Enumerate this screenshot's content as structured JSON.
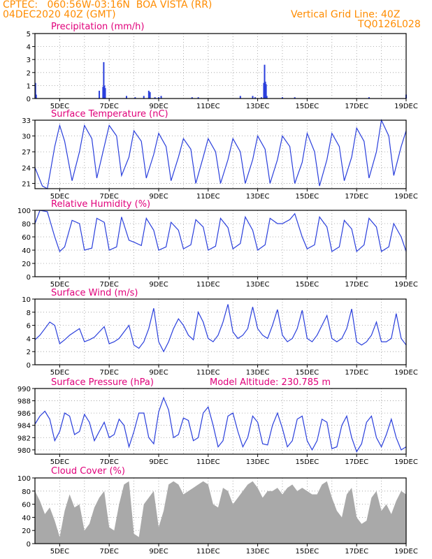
{
  "header": {
    "station_line": "CPTEC:   060:56W-03:16N  BOA VISTA (RR)",
    "date_line": "04DEC2020 40Z (GMT)",
    "grid_note": "Vertical Grid Line: 40Z",
    "code": "TQ0126L028"
  },
  "x_axis": {
    "start_day": 4,
    "end_day": 19,
    "tick_labels": [
      "5DEC",
      "7DEC",
      "9DEC",
      "11DEC",
      "13DEC",
      "15DEC",
      "17DEC",
      "19DEC"
    ],
    "tick_days": [
      5,
      7,
      9,
      11,
      13,
      15,
      17,
      19
    ]
  },
  "colors": {
    "line": "#2a3fdc",
    "title": "#e0007a",
    "header": "#ff8c00",
    "cloud": "#a9a9a9"
  },
  "chart_data": [
    {
      "type": "bar",
      "title": "Precipitation (mm/h)",
      "ylim": [
        0,
        5
      ],
      "yticks": [
        0,
        1,
        2,
        3,
        4,
        5
      ],
      "x": [
        4.02,
        4.05,
        6.6,
        6.75,
        6.78,
        6.81,
        6.84,
        7.7,
        8.05,
        8.4,
        8.6,
        8.65,
        8.85,
        9.0,
        9.1,
        10.35,
        10.6,
        12.3,
        12.8,
        12.9,
        13.15,
        13.25,
        13.28,
        13.31,
        13.34,
        13.37,
        14.0,
        14.5,
        17.5,
        19.0
      ],
      "values": [
        1.2,
        0.3,
        0.6,
        0.9,
        2.8,
        1.0,
        0.8,
        0.2,
        0.1,
        0.2,
        0.6,
        0.5,
        0.1,
        0.1,
        0.2,
        0.1,
        0.1,
        0.2,
        0.2,
        0.1,
        0.1,
        1.2,
        2.6,
        1.3,
        1.1,
        0.2,
        0.1,
        0.1,
        0.1,
        0.3
      ]
    },
    {
      "type": "line",
      "title": "Surface Temperature (nC)",
      "ylim": [
        20,
        33
      ],
      "yticks": [
        21,
        24,
        27,
        30,
        33
      ],
      "x": [
        4.0,
        4.3,
        4.5,
        4.8,
        5.0,
        5.2,
        5.5,
        5.8,
        6.0,
        6.3,
        6.5,
        6.8,
        7.0,
        7.3,
        7.5,
        7.8,
        8.0,
        8.3,
        8.5,
        8.8,
        9.0,
        9.3,
        9.5,
        9.8,
        10.0,
        10.3,
        10.5,
        10.8,
        11.0,
        11.3,
        11.5,
        11.8,
        12.0,
        12.3,
        12.5,
        12.8,
        13.0,
        13.3,
        13.5,
        13.8,
        14.0,
        14.3,
        14.5,
        14.8,
        15.0,
        15.3,
        15.5,
        15.8,
        16.0,
        16.3,
        16.5,
        16.8,
        17.0,
        17.3,
        17.5,
        17.8,
        18.0,
        18.3,
        18.5,
        18.8,
        19.0
      ],
      "values": [
        24,
        20.5,
        20,
        28,
        32,
        29,
        21.5,
        27,
        32,
        29.5,
        22,
        28,
        32,
        30,
        22.5,
        26,
        31,
        29,
        22,
        26.5,
        30.5,
        28,
        21.5,
        26,
        29.5,
        27.5,
        21,
        26,
        29.5,
        27,
        21,
        25.5,
        29.5,
        27,
        21,
        25.5,
        30,
        27.5,
        21,
        25.5,
        30,
        28,
        21,
        25,
        30.5,
        27,
        20.5,
        25.5,
        30.5,
        28,
        21.5,
        26,
        31.5,
        29,
        22,
        27,
        33,
        30,
        22.5,
        28,
        31
      ]
    },
    {
      "type": "line",
      "title": "Relative Humidity (%)",
      "ylim": [
        0,
        100
      ],
      "yticks": [
        0,
        20,
        40,
        60,
        80,
        100
      ],
      "x": [
        4.0,
        4.2,
        4.5,
        4.8,
        5.0,
        5.2,
        5.5,
        5.8,
        6.0,
        6.3,
        6.5,
        6.8,
        7.0,
        7.3,
        7.5,
        7.8,
        8.0,
        8.3,
        8.5,
        8.8,
        9.0,
        9.3,
        9.5,
        9.8,
        10.0,
        10.3,
        10.5,
        10.8,
        11.0,
        11.3,
        11.5,
        11.8,
        12.0,
        12.3,
        12.5,
        12.8,
        13.0,
        13.3,
        13.5,
        13.8,
        14.0,
        14.3,
        14.5,
        14.8,
        15.0,
        15.3,
        15.5,
        15.8,
        16.0,
        16.3,
        16.5,
        16.8,
        17.0,
        17.3,
        17.5,
        17.8,
        18.0,
        18.3,
        18.5,
        18.8,
        19.0
      ],
      "values": [
        80,
        100,
        98,
        60,
        38,
        45,
        85,
        80,
        40,
        43,
        88,
        82,
        40,
        45,
        90,
        55,
        52,
        47,
        88,
        70,
        40,
        45,
        82,
        70,
        42,
        48,
        86,
        75,
        40,
        46,
        88,
        74,
        42,
        50,
        90,
        70,
        40,
        48,
        88,
        80,
        80,
        86,
        95,
        60,
        42,
        48,
        90,
        75,
        38,
        45,
        85,
        72,
        38,
        48,
        88,
        75,
        38,
        45,
        80,
        60,
        38
      ]
    },
    {
      "type": "line",
      "title": "Surface Wind (m/s)",
      "ylim": [
        0,
        10
      ],
      "yticks": [
        0,
        2,
        4,
        6,
        8,
        10
      ],
      "x": [
        4.0,
        4.2,
        4.4,
        4.6,
        4.8,
        5.0,
        5.2,
        5.4,
        5.6,
        5.8,
        6.0,
        6.2,
        6.4,
        6.6,
        6.8,
        7.0,
        7.2,
        7.4,
        7.6,
        7.8,
        8.0,
        8.2,
        8.4,
        8.6,
        8.8,
        9.0,
        9.2,
        9.4,
        9.6,
        9.8,
        10.0,
        10.2,
        10.4,
        10.6,
        10.8,
        11.0,
        11.2,
        11.4,
        11.6,
        11.8,
        12.0,
        12.2,
        12.4,
        12.6,
        12.8,
        13.0,
        13.2,
        13.4,
        13.6,
        13.8,
        14.0,
        14.2,
        14.4,
        14.6,
        14.8,
        15.0,
        15.2,
        15.4,
        15.6,
        15.8,
        16.0,
        16.2,
        16.4,
        16.6,
        16.8,
        17.0,
        17.2,
        17.4,
        17.6,
        17.8,
        18.0,
        18.2,
        18.4,
        18.6,
        18.8,
        19.0
      ],
      "values": [
        3.8,
        4.5,
        5.5,
        6.5,
        6.0,
        3.2,
        3.8,
        4.5,
        5.0,
        5.5,
        3.5,
        3.8,
        4.2,
        5.0,
        5.8,
        3.2,
        3.5,
        4.0,
        5.0,
        6.0,
        3.0,
        2.5,
        3.5,
        5.5,
        8.6,
        3.5,
        2.0,
        3.5,
        5.5,
        7.0,
        6.0,
        4.5,
        3.8,
        8.0,
        6.5,
        4.0,
        3.5,
        4.5,
        6.5,
        9.2,
        5.0,
        4.0,
        4.5,
        5.5,
        8.8,
        5.5,
        4.5,
        4.0,
        6.0,
        8.4,
        4.5,
        3.5,
        4.0,
        5.5,
        8.3,
        4.0,
        3.5,
        4.5,
        6.0,
        7.5,
        4.0,
        3.5,
        4.0,
        5.5,
        8.5,
        3.5,
        3.0,
        3.5,
        4.5,
        6.5,
        3.5,
        3.5,
        4.0,
        7.8,
        4.0,
        3.0
      ]
    },
    {
      "type": "line",
      "title": "Surface Pressure (hPa)",
      "annotation": "Model Altitude: 230.785 m",
      "ylim": [
        979.3,
        990
      ],
      "yticks": [
        980,
        982,
        984,
        986,
        988,
        990
      ],
      "x": [
        4.0,
        4.2,
        4.4,
        4.6,
        4.8,
        5.0,
        5.2,
        5.4,
        5.6,
        5.8,
        6.0,
        6.2,
        6.4,
        6.6,
        6.8,
        7.0,
        7.2,
        7.4,
        7.6,
        7.8,
        8.0,
        8.2,
        8.4,
        8.6,
        8.8,
        9.0,
        9.2,
        9.4,
        9.6,
        9.8,
        10.0,
        10.2,
        10.4,
        10.6,
        10.8,
        11.0,
        11.2,
        11.4,
        11.6,
        11.8,
        12.0,
        12.2,
        12.4,
        12.6,
        12.8,
        13.0,
        13.2,
        13.4,
        13.6,
        13.8,
        14.0,
        14.2,
        14.4,
        14.6,
        14.8,
        15.0,
        15.2,
        15.4,
        15.6,
        15.8,
        16.0,
        16.2,
        16.4,
        16.6,
        16.8,
        17.0,
        17.2,
        17.4,
        17.6,
        17.8,
        18.0,
        18.2,
        18.4,
        18.6,
        18.8,
        19.0
      ],
      "values": [
        984.2,
        985.5,
        986.3,
        985.0,
        981.5,
        983.0,
        986.0,
        985.5,
        982.5,
        983.0,
        985.8,
        984.5,
        981.5,
        983.0,
        984.5,
        982.0,
        982.5,
        985.0,
        984.0,
        980.5,
        983.0,
        986.0,
        986.0,
        982.0,
        981.0,
        986.2,
        988.5,
        986.5,
        982.0,
        982.5,
        985.2,
        984.8,
        981.5,
        982.0,
        986.0,
        987.0,
        984.0,
        980.5,
        981.5,
        985.5,
        986.0,
        983.0,
        980.5,
        982.0,
        985.5,
        984.5,
        981.0,
        980.8,
        984.0,
        986.0,
        983.5,
        980.5,
        981.5,
        985.0,
        985.5,
        981.5,
        980.0,
        981.5,
        985.0,
        984.5,
        980.2,
        980.5,
        984.0,
        985.5,
        982.0,
        979.7,
        981.0,
        984.5,
        985.5,
        982.0,
        980.5,
        982.5,
        985.0,
        982.0,
        980.0,
        980.5
      ]
    },
    {
      "type": "area",
      "title": "Cloud Cover (%)",
      "ylim": [
        0,
        100
      ],
      "yticks": [
        0,
        20,
        40,
        60,
        80,
        100
      ],
      "x": [
        4.0,
        4.2,
        4.4,
        4.6,
        4.8,
        5.0,
        5.2,
        5.4,
        5.6,
        5.8,
        6.0,
        6.2,
        6.4,
        6.6,
        6.8,
        7.0,
        7.2,
        7.4,
        7.6,
        7.8,
        8.0,
        8.2,
        8.4,
        8.6,
        8.8,
        9.0,
        9.2,
        9.4,
        9.6,
        9.8,
        10.0,
        10.2,
        10.4,
        10.6,
        10.8,
        11.0,
        11.2,
        11.4,
        11.6,
        11.8,
        12.0,
        12.2,
        12.4,
        12.6,
        12.8,
        13.0,
        13.2,
        13.4,
        13.6,
        13.8,
        14.0,
        14.2,
        14.4,
        14.6,
        14.8,
        15.0,
        15.2,
        15.4,
        15.6,
        15.8,
        16.0,
        16.2,
        16.4,
        16.6,
        16.8,
        17.0,
        17.2,
        17.4,
        17.6,
        17.8,
        18.0,
        18.2,
        18.4,
        18.6,
        18.8,
        19.0
      ],
      "values": [
        80,
        65,
        45,
        55,
        35,
        10,
        50,
        75,
        55,
        60,
        20,
        30,
        55,
        70,
        80,
        25,
        20,
        60,
        90,
        95,
        15,
        10,
        60,
        70,
        80,
        25,
        50,
        90,
        95,
        90,
        75,
        80,
        85,
        90,
        95,
        90,
        60,
        55,
        85,
        80,
        60,
        70,
        80,
        90,
        95,
        85,
        70,
        80,
        80,
        85,
        75,
        85,
        90,
        80,
        85,
        80,
        75,
        75,
        90,
        95,
        70,
        50,
        40,
        75,
        85,
        40,
        30,
        35,
        70,
        80,
        50,
        60,
        45,
        65,
        80,
        75
      ]
    }
  ]
}
